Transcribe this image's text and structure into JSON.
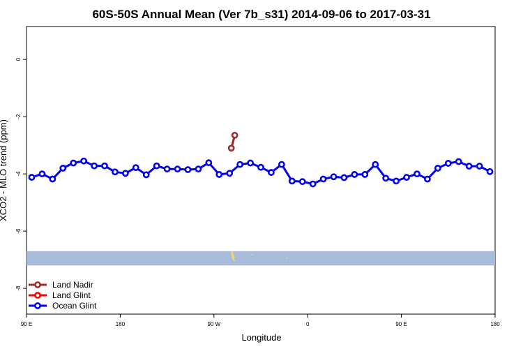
{
  "chart_data": {
    "type": "line",
    "title": "60S-50S Annual Mean (Ver 7b_s31)   2014-09-06 to 2017-03-31",
    "xlabel": "Longitude",
    "ylabel": "XCO2 - MLO trend (ppm)",
    "xlim": [
      -90,
      180
    ],
    "ylim": [
      -8.9,
      1.15
    ],
    "x_ticks": [
      {
        "value": -90,
        "label": "90 E"
      },
      {
        "value": -36,
        "label": "180"
      },
      {
        "value": 18,
        "label": "90 W"
      },
      {
        "value": 72,
        "label": "0"
      },
      {
        "value": 126,
        "label": "90 E"
      },
      {
        "value": 180,
        "label": "180"
      }
    ],
    "y_ticks": [
      {
        "value": 0,
        "label": "0"
      },
      {
        "value": -2,
        "label": "-2"
      },
      {
        "value": -4,
        "label": "-4"
      },
      {
        "value": -6,
        "label": "-6"
      },
      {
        "value": -8,
        "label": "-8"
      }
    ],
    "grid": false,
    "legend_position": "bottom-left",
    "map_strip": {
      "y_top": -6.7,
      "y_bottom": -7.2,
      "ocean_color": "#a7bcd9",
      "land_color": "#f2d479"
    },
    "series": [
      {
        "name": "Land Nadir",
        "color": "#9b2a2a",
        "x": [
          28,
          30
        ],
        "values": [
          -3.1,
          -2.65
        ]
      },
      {
        "name": "Land Glint",
        "color": "#ff0000",
        "x": [],
        "values": []
      },
      {
        "name": "Ocean Glint",
        "color": "#0000ee",
        "x": [
          -87,
          -81,
          -75,
          -69,
          -63,
          -57,
          -51,
          -45,
          -39,
          -33,
          -27,
          -21,
          -15,
          -9,
          -3,
          3,
          9,
          15,
          21,
          27,
          33,
          39,
          45,
          51,
          57,
          63,
          69,
          75,
          81,
          87,
          93,
          99,
          105,
          111,
          117,
          123,
          129,
          135,
          141,
          147,
          153,
          159,
          165,
          171,
          177
        ],
        "values": [
          -4.12,
          -4.0,
          -4.18,
          -3.8,
          -3.62,
          -3.55,
          -3.72,
          -3.72,
          -3.93,
          -3.98,
          -3.78,
          -4.03,
          -3.72,
          -3.83,
          -3.83,
          -3.85,
          -3.83,
          -3.61,
          -4.02,
          -3.98,
          -3.67,
          -3.62,
          -3.77,
          -3.95,
          -3.67,
          -4.25,
          -4.27,
          -4.35,
          -4.18,
          -4.1,
          -4.13,
          -4.02,
          -4.02,
          -3.67,
          -4.15,
          -4.25,
          -4.12,
          -4.0,
          -4.18,
          -3.8,
          -3.63,
          -3.57,
          -3.73,
          -3.73,
          -3.92
        ]
      }
    ]
  }
}
